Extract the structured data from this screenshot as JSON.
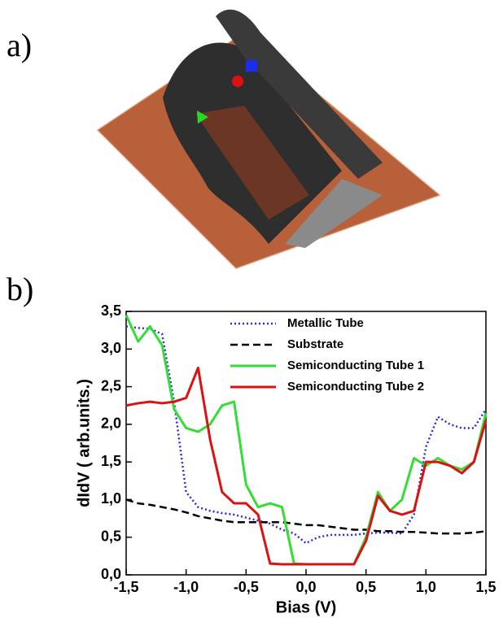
{
  "panel_labels": [
    "a)",
    "b)"
  ],
  "chart_data": {
    "type": "line",
    "xlabel": "Bias (V)",
    "ylabel": "dIdV ( arb.units.)",
    "x": [
      -1.5,
      -1.4,
      -1.3,
      -1.2,
      -1.1,
      -1.0,
      -0.9,
      -0.8,
      -0.7,
      -0.6,
      -0.5,
      -0.4,
      -0.3,
      -0.2,
      -0.1,
      0.0,
      0.1,
      0.2,
      0.3,
      0.4,
      0.5,
      0.6,
      0.7,
      0.8,
      0.9,
      1.0,
      1.1,
      1.2,
      1.3,
      1.4,
      1.5
    ],
    "series": [
      {
        "name": "Metallic Tube",
        "color": "#2a2ae0",
        "dash": "dotted",
        "values": [
          3.3,
          3.28,
          3.27,
          3.2,
          2.3,
          1.1,
          0.9,
          0.85,
          0.82,
          0.8,
          0.76,
          0.72,
          0.68,
          0.6,
          0.55,
          0.42,
          0.5,
          0.53,
          0.53,
          0.53,
          0.55,
          0.56,
          0.56,
          0.55,
          0.8,
          1.7,
          2.1,
          2.0,
          1.95,
          1.95,
          2.2
        ]
      },
      {
        "name": "Substrate",
        "color": "#000000",
        "dash": "dashed",
        "values": [
          1.0,
          0.95,
          0.93,
          0.9,
          0.87,
          0.83,
          0.78,
          0.75,
          0.72,
          0.7,
          0.7,
          0.7,
          0.7,
          0.7,
          0.68,
          0.66,
          0.66,
          0.64,
          0.62,
          0.6,
          0.6,
          0.58,
          0.58,
          0.57,
          0.57,
          0.56,
          0.55,
          0.55,
          0.55,
          0.56,
          0.58
        ]
      },
      {
        "name": "Semiconducting Tube 1",
        "color": "#33dd33",
        "dash": "solid",
        "values": [
          3.45,
          3.1,
          3.3,
          3.05,
          2.2,
          1.95,
          1.9,
          2.0,
          2.25,
          2.3,
          1.2,
          0.9,
          0.95,
          0.9,
          0.15,
          0.14,
          0.14,
          0.14,
          0.14,
          0.14,
          0.5,
          1.1,
          0.85,
          1.0,
          1.55,
          1.45,
          1.55,
          1.45,
          1.4,
          1.5,
          2.15
        ]
      },
      {
        "name": "Semiconducting Tube 2",
        "color": "#dd1111",
        "dash": "solid",
        "values": [
          2.25,
          2.28,
          2.3,
          2.28,
          2.3,
          2.35,
          2.75,
          1.8,
          1.1,
          0.95,
          0.95,
          0.8,
          0.15,
          0.14,
          0.14,
          0.14,
          0.14,
          0.14,
          0.14,
          0.14,
          0.45,
          1.05,
          0.85,
          0.8,
          0.85,
          1.5,
          1.5,
          1.45,
          1.35,
          1.5,
          2.05
        ]
      }
    ],
    "xlim": [
      -1.5,
      1.5
    ],
    "xticks": [
      {
        "value": -1.5,
        "label": "-1,5"
      },
      {
        "value": -1.0,
        "label": "-1,0"
      },
      {
        "value": -0.5,
        "label": "-0,5"
      },
      {
        "value": 0.0,
        "label": "0,0"
      },
      {
        "value": 0.5,
        "label": "0,5"
      },
      {
        "value": 1.0,
        "label": "1,0"
      },
      {
        "value": 1.5,
        "label": "1,5"
      }
    ],
    "ylim": [
      0,
      3.5
    ],
    "yticks": [
      {
        "value": 0,
        "label": "0,0"
      },
      {
        "value": 0.5,
        "label": "0,5"
      },
      {
        "value": 1.0,
        "label": "1,0"
      },
      {
        "value": 1.5,
        "label": "1,5"
      },
      {
        "value": 2.0,
        "label": "2,0"
      },
      {
        "value": 2.5,
        "label": "2,5"
      },
      {
        "value": 3.0,
        "label": "3,0"
      },
      {
        "value": 3.5,
        "label": "3,5"
      }
    ],
    "legend": "upper right",
    "grid": false
  }
}
